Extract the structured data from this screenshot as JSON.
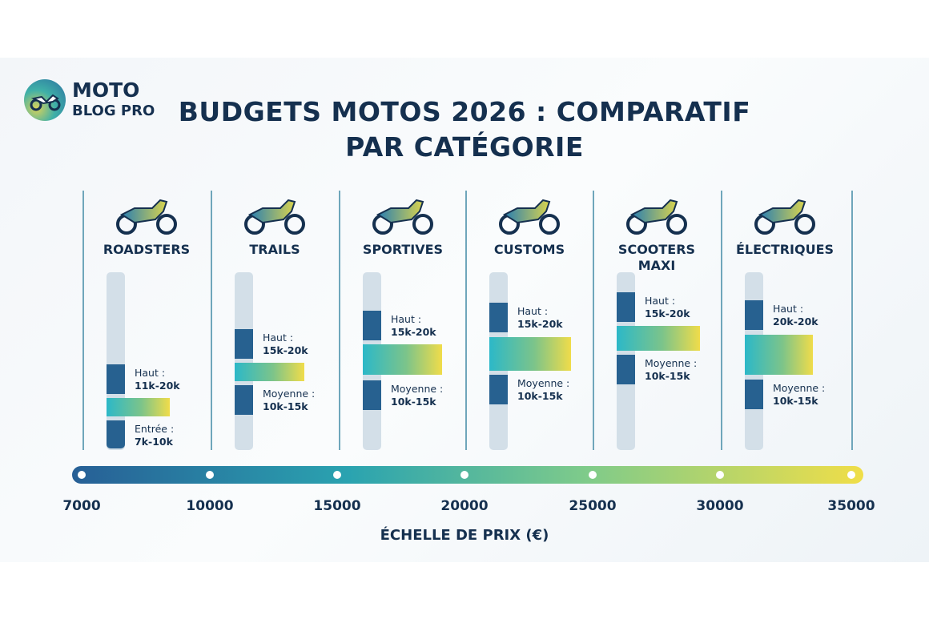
{
  "logo": {
    "line1": "MOTO",
    "line2": "BLOG PRO"
  },
  "chart_data": {
    "type": "bar",
    "title": "BUDGETS MOTOS 2026 : COMPARATIF PAR CATÉGORIE",
    "xlabel": "ÉCHELLE DE PRIX (€)",
    "x_ticks": [
      7000,
      10000,
      15000,
      20000,
      25000,
      30000,
      35000
    ],
    "colors": {
      "dark": "#276190",
      "track": "#d3dfe8",
      "grad_start": "#2cb8c8",
      "grad_end": "#f0dc4a"
    },
    "categories": [
      {
        "name": "ROADSTERS",
        "icon": "roadster-motorcycle-icon",
        "segments": [
          {
            "label": "Haut :",
            "range": "11k-20k"
          },
          {
            "label": "Entrée :",
            "range": "7k-10k"
          }
        ]
      },
      {
        "name": "TRAILS",
        "icon": "trail-motorcycle-icon",
        "segments": [
          {
            "label": "Haut :",
            "range": "15k-20k"
          },
          {
            "label": "Moyenne :",
            "range": "10k-15k"
          }
        ]
      },
      {
        "name": "SPORTIVES",
        "icon": "sport-motorcycle-icon",
        "segments": [
          {
            "label": "Haut :",
            "range": "15k-20k"
          },
          {
            "label": "Moyenne :",
            "range": "10k-15k"
          }
        ]
      },
      {
        "name": "CUSTOMS",
        "icon": "custom-motorcycle-icon",
        "segments": [
          {
            "label": "Haut :",
            "range": "15k-20k"
          },
          {
            "label": "Moyenne :",
            "range": "10k-15k"
          }
        ]
      },
      {
        "name": "SCOOTERS MAXI",
        "icon": "maxi-scooter-icon",
        "segments": [
          {
            "label": "Haut :",
            "range": "15k-20k"
          },
          {
            "label": "Moyenne :",
            "range": "10k-15k"
          }
        ]
      },
      {
        "name": "ÉLECTRIQUES",
        "icon": "electric-scooter-icon",
        "segments": [
          {
            "label": "Haut :",
            "range": "20k-20k"
          },
          {
            "label": "Moyenne :",
            "range": "10k-15k"
          }
        ]
      }
    ]
  }
}
